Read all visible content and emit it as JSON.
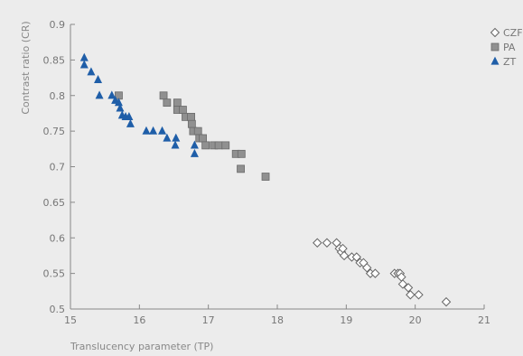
{
  "chart_data": {
    "type": "scatter",
    "title": "",
    "xlabel": "Translucency parameter (TP)",
    "ylabel": "Contrast ratio (CR)",
    "xlim": [
      15,
      21
    ],
    "ylim": [
      0.5,
      0.9
    ],
    "xticks": [
      "15",
      "16",
      "17",
      "18",
      "19",
      "20",
      "21"
    ],
    "yticks": [
      "0.5",
      "0.55",
      "0.6",
      "0.65",
      "0.7",
      "0.75",
      "0.8",
      "0.85",
      "0.9"
    ],
    "grid": false,
    "legend_position": "top-right",
    "series": [
      {
        "name": "CZF",
        "marker": "diamond-open",
        "color": "#666666",
        "points": [
          [
            18.58,
            0.593
          ],
          [
            18.72,
            0.593
          ],
          [
            18.86,
            0.593
          ],
          [
            18.9,
            0.585
          ],
          [
            18.93,
            0.58
          ],
          [
            18.95,
            0.585
          ],
          [
            18.97,
            0.575
          ],
          [
            19.08,
            0.573
          ],
          [
            19.15,
            0.573
          ],
          [
            19.2,
            0.565
          ],
          [
            19.25,
            0.565
          ],
          [
            19.3,
            0.558
          ],
          [
            19.35,
            0.55
          ],
          [
            19.42,
            0.55
          ],
          [
            19.7,
            0.55
          ],
          [
            19.75,
            0.55
          ],
          [
            19.78,
            0.55
          ],
          [
            19.8,
            0.545
          ],
          [
            19.82,
            0.535
          ],
          [
            19.9,
            0.53
          ],
          [
            19.93,
            0.52
          ],
          [
            20.05,
            0.52
          ],
          [
            20.45,
            0.51
          ]
        ]
      },
      {
        "name": "PA",
        "marker": "square",
        "color": "#909090",
        "points": [
          [
            15.7,
            0.8
          ],
          [
            16.35,
            0.8
          ],
          [
            16.4,
            0.79
          ],
          [
            16.55,
            0.79
          ],
          [
            16.55,
            0.78
          ],
          [
            16.63,
            0.78
          ],
          [
            16.67,
            0.77
          ],
          [
            16.75,
            0.77
          ],
          [
            16.76,
            0.76
          ],
          [
            16.78,
            0.75
          ],
          [
            16.85,
            0.75
          ],
          [
            16.87,
            0.74
          ],
          [
            16.92,
            0.74
          ],
          [
            16.96,
            0.73
          ],
          [
            17.08,
            0.73
          ],
          [
            17.15,
            0.73
          ],
          [
            17.25,
            0.73
          ],
          [
            17.4,
            0.718
          ],
          [
            17.48,
            0.718
          ],
          [
            17.47,
            0.697
          ],
          [
            17.83,
            0.686
          ]
        ]
      },
      {
        "name": "ZT",
        "marker": "triangle",
        "color": "#1f5ea8",
        "points": [
          [
            15.2,
            0.853
          ],
          [
            15.2,
            0.843
          ],
          [
            15.3,
            0.833
          ],
          [
            15.4,
            0.822
          ],
          [
            15.42,
            0.8
          ],
          [
            15.6,
            0.8
          ],
          [
            15.65,
            0.793
          ],
          [
            15.7,
            0.79
          ],
          [
            15.72,
            0.782
          ],
          [
            15.75,
            0.772
          ],
          [
            15.8,
            0.77
          ],
          [
            15.85,
            0.77
          ],
          [
            15.87,
            0.76
          ],
          [
            16.1,
            0.75
          ],
          [
            16.2,
            0.75
          ],
          [
            16.33,
            0.75
          ],
          [
            16.4,
            0.74
          ],
          [
            16.53,
            0.74
          ],
          [
            16.52,
            0.73
          ],
          [
            16.8,
            0.73
          ],
          [
            16.8,
            0.718
          ]
        ]
      }
    ]
  }
}
